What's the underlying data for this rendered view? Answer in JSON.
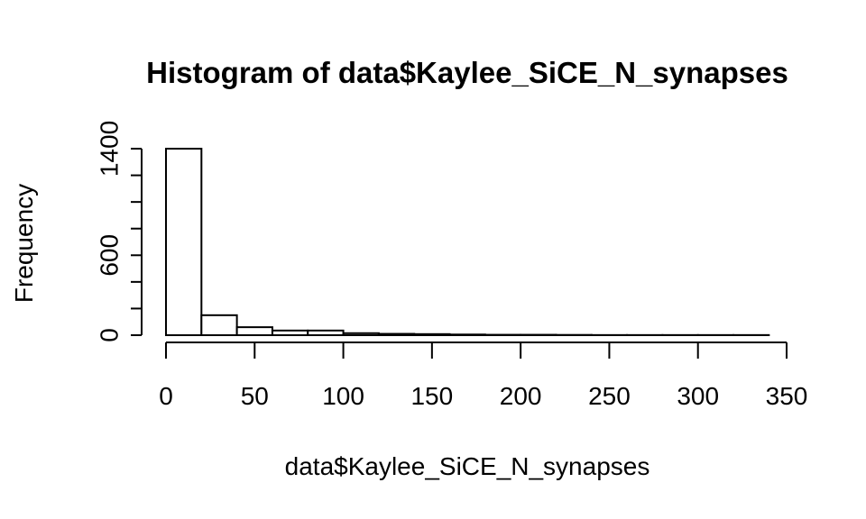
{
  "chart_data": {
    "type": "bar",
    "title": "Histogram of data$Kaylee_SiCE_N_synapses",
    "xlabel": "data$Kaylee_SiCE_N_synapses",
    "ylabel": "Frequency",
    "bins": [
      {
        "x0": 0,
        "x1": 20,
        "count": 1400
      },
      {
        "x0": 20,
        "x1": 40,
        "count": 150
      },
      {
        "x0": 40,
        "x1": 60,
        "count": 60
      },
      {
        "x0": 60,
        "x1": 80,
        "count": 35
      },
      {
        "x0": 80,
        "x1": 100,
        "count": 35
      },
      {
        "x0": 100,
        "x1": 120,
        "count": 15
      },
      {
        "x0": 120,
        "x1": 140,
        "count": 10
      },
      {
        "x0": 140,
        "x1": 160,
        "count": 8
      },
      {
        "x0": 160,
        "x1": 180,
        "count": 5
      },
      {
        "x0": 180,
        "x1": 200,
        "count": 3
      },
      {
        "x0": 200,
        "x1": 220,
        "count": 3
      },
      {
        "x0": 220,
        "x1": 240,
        "count": 2
      },
      {
        "x0": 240,
        "x1": 260,
        "count": 1
      },
      {
        "x0": 260,
        "x1": 280,
        "count": 1
      },
      {
        "x0": 280,
        "x1": 300,
        "count": 1
      },
      {
        "x0": 300,
        "x1": 320,
        "count": 1
      },
      {
        "x0": 320,
        "x1": 340,
        "count": 1
      }
    ],
    "x_ticks": [
      0,
      50,
      100,
      150,
      200,
      250,
      300,
      350
    ],
    "y_ticks": [
      0,
      200,
      400,
      600,
      800,
      1000,
      1200,
      1400
    ],
    "y_tick_labels": [
      "0",
      "",
      "",
      "600",
      "",
      "",
      "",
      "1400"
    ],
    "xlim": [
      0,
      350
    ],
    "ylim": [
      0,
      1400
    ],
    "grid": false,
    "bar_fill": "#ffffff",
    "bar_stroke": "#000000"
  }
}
